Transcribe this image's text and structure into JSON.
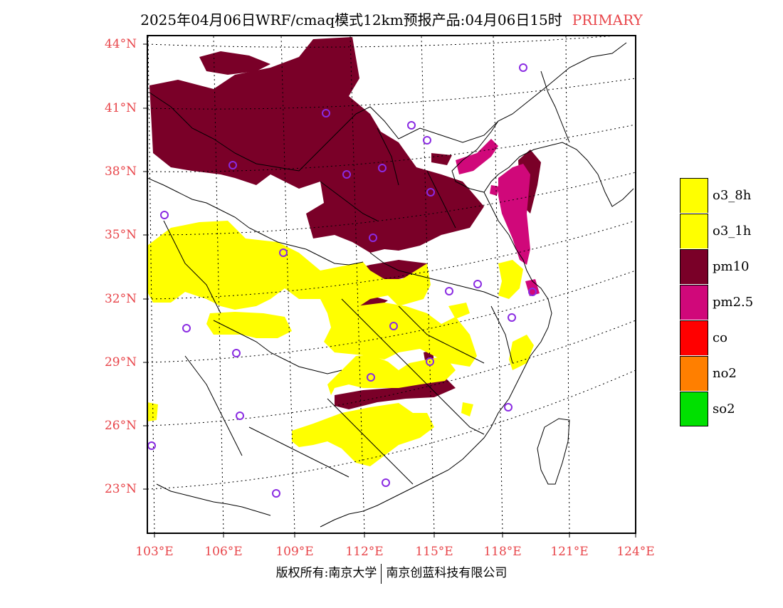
{
  "title": {
    "main": "2025年04月06日WRF/cmaq模式12km预报产品:04月06日15时",
    "tag": "PRIMARY"
  },
  "lat_labels": [
    "44°N",
    "41°N",
    "38°N",
    "35°N",
    "32°N",
    "29°N",
    "26°N",
    "23°N"
  ],
  "lon_labels": [
    "103°E",
    "106°E",
    "109°E",
    "112°E",
    "115°E",
    "118°E",
    "121°E",
    "124°E"
  ],
  "legend": [
    {
      "label": "o3_8h",
      "color": "#ffff00"
    },
    {
      "label": "o3_1h",
      "color": "#ffff00"
    },
    {
      "label": "pm10",
      "color": "#7a0028"
    },
    {
      "label": "pm2.5",
      "color": "#d0087a"
    },
    {
      "label": "co",
      "color": "#ff0000"
    },
    {
      "label": "no2",
      "color": "#ff7f00"
    },
    {
      "label": "so2",
      "color": "#00e000"
    }
  ],
  "footer": {
    "left": "版权所有:南京大学",
    "right": "南京创蓝科技有限公司"
  },
  "colors": {
    "label": "#e8454a",
    "station": "#8a2be2",
    "pm10": "#7a0028",
    "pm25": "#d0087a",
    "o3": "#ffff00"
  }
}
